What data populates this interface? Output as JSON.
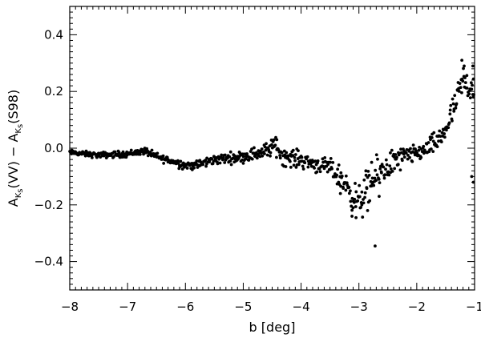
{
  "chart_data": {
    "type": "scatter",
    "title": "",
    "xlabel": "b [deg]",
    "ylabel": {
      "A": "A",
      "K": "K",
      "s": "s",
      "part1": "(VV) − ",
      "part2": "(S98)"
    },
    "xlim": [
      -8,
      -1
    ],
    "ylim": [
      -0.5,
      0.5
    ],
    "x_ticks": [
      -8,
      -7,
      -6,
      -5,
      -4,
      -3,
      -2,
      -1
    ],
    "x_tick_labels": [
      "−8",
      "−7",
      "−6",
      "−5",
      "−4",
      "−3",
      "−2",
      "−1"
    ],
    "y_ticks": [
      -0.4,
      -0.2,
      0.0,
      0.2,
      0.4
    ],
    "y_tick_labels": [
      "−0.4",
      "−0.2",
      "0.0",
      "0.2",
      "0.4"
    ],
    "grid": false,
    "marker_color": "#000000",
    "trend": [
      [
        -8.0,
        -0.015
      ],
      [
        -7.5,
        -0.025
      ],
      [
        -7.0,
        -0.02
      ],
      [
        -6.7,
        -0.01
      ],
      [
        -6.5,
        -0.03
      ],
      [
        -6.0,
        -0.06
      ],
      [
        -5.8,
        -0.06
      ],
      [
        -5.5,
        -0.04
      ],
      [
        -5.0,
        -0.03
      ],
      [
        -4.6,
        -0.01
      ],
      [
        -4.45,
        0.01
      ],
      [
        -4.3,
        -0.03
      ],
      [
        -4.0,
        -0.04
      ],
      [
        -3.7,
        -0.06
      ],
      [
        -3.5,
        -0.07
      ],
      [
        -3.3,
        -0.11
      ],
      [
        -3.15,
        -0.15
      ],
      [
        -3.05,
        -0.19
      ],
      [
        -2.95,
        -0.18
      ],
      [
        -2.85,
        -0.15
      ],
      [
        -2.7,
        -0.1
      ],
      [
        -2.5,
        -0.06
      ],
      [
        -2.2,
        -0.03
      ],
      [
        -2.0,
        -0.02
      ],
      [
        -1.8,
        -0.0
      ],
      [
        -1.6,
        0.03
      ],
      [
        -1.45,
        0.09
      ],
      [
        -1.3,
        0.17
      ],
      [
        -1.2,
        0.24
      ],
      [
        -1.1,
        0.22
      ],
      [
        -1.0,
        0.22
      ]
    ],
    "scatter_spread": [
      [
        -8.0,
        0.008
      ],
      [
        -6.5,
        0.012
      ],
      [
        -5.0,
        0.018
      ],
      [
        -4.4,
        0.03
      ],
      [
        -3.6,
        0.025
      ],
      [
        -3.2,
        0.045
      ],
      [
        -2.9,
        0.06
      ],
      [
        -2.5,
        0.05
      ],
      [
        -2.0,
        0.025
      ],
      [
        -1.5,
        0.04
      ],
      [
        -1.2,
        0.05
      ],
      [
        -1.0,
        0.06
      ]
    ],
    "extra_points": [
      [
        -2.72,
        -0.345
      ],
      [
        -3.12,
        -0.24
      ],
      [
        -3.05,
        -0.245
      ],
      [
        -2.85,
        -0.22
      ],
      [
        -2.95,
        -0.2
      ],
      [
        -1.05,
        -0.1
      ],
      [
        -1.02,
        -0.12
      ],
      [
        -1.02,
        0.18
      ],
      [
        -1.03,
        0.29
      ],
      [
        -1.22,
        0.31
      ],
      [
        -1.18,
        0.29
      ],
      [
        -3.32,
        -0.16
      ],
      [
        -2.88,
        -0.08
      ],
      [
        -2.78,
        -0.05
      ],
      [
        -4.42,
        0.03
      ],
      [
        -2.65,
        -0.17
      ]
    ]
  }
}
